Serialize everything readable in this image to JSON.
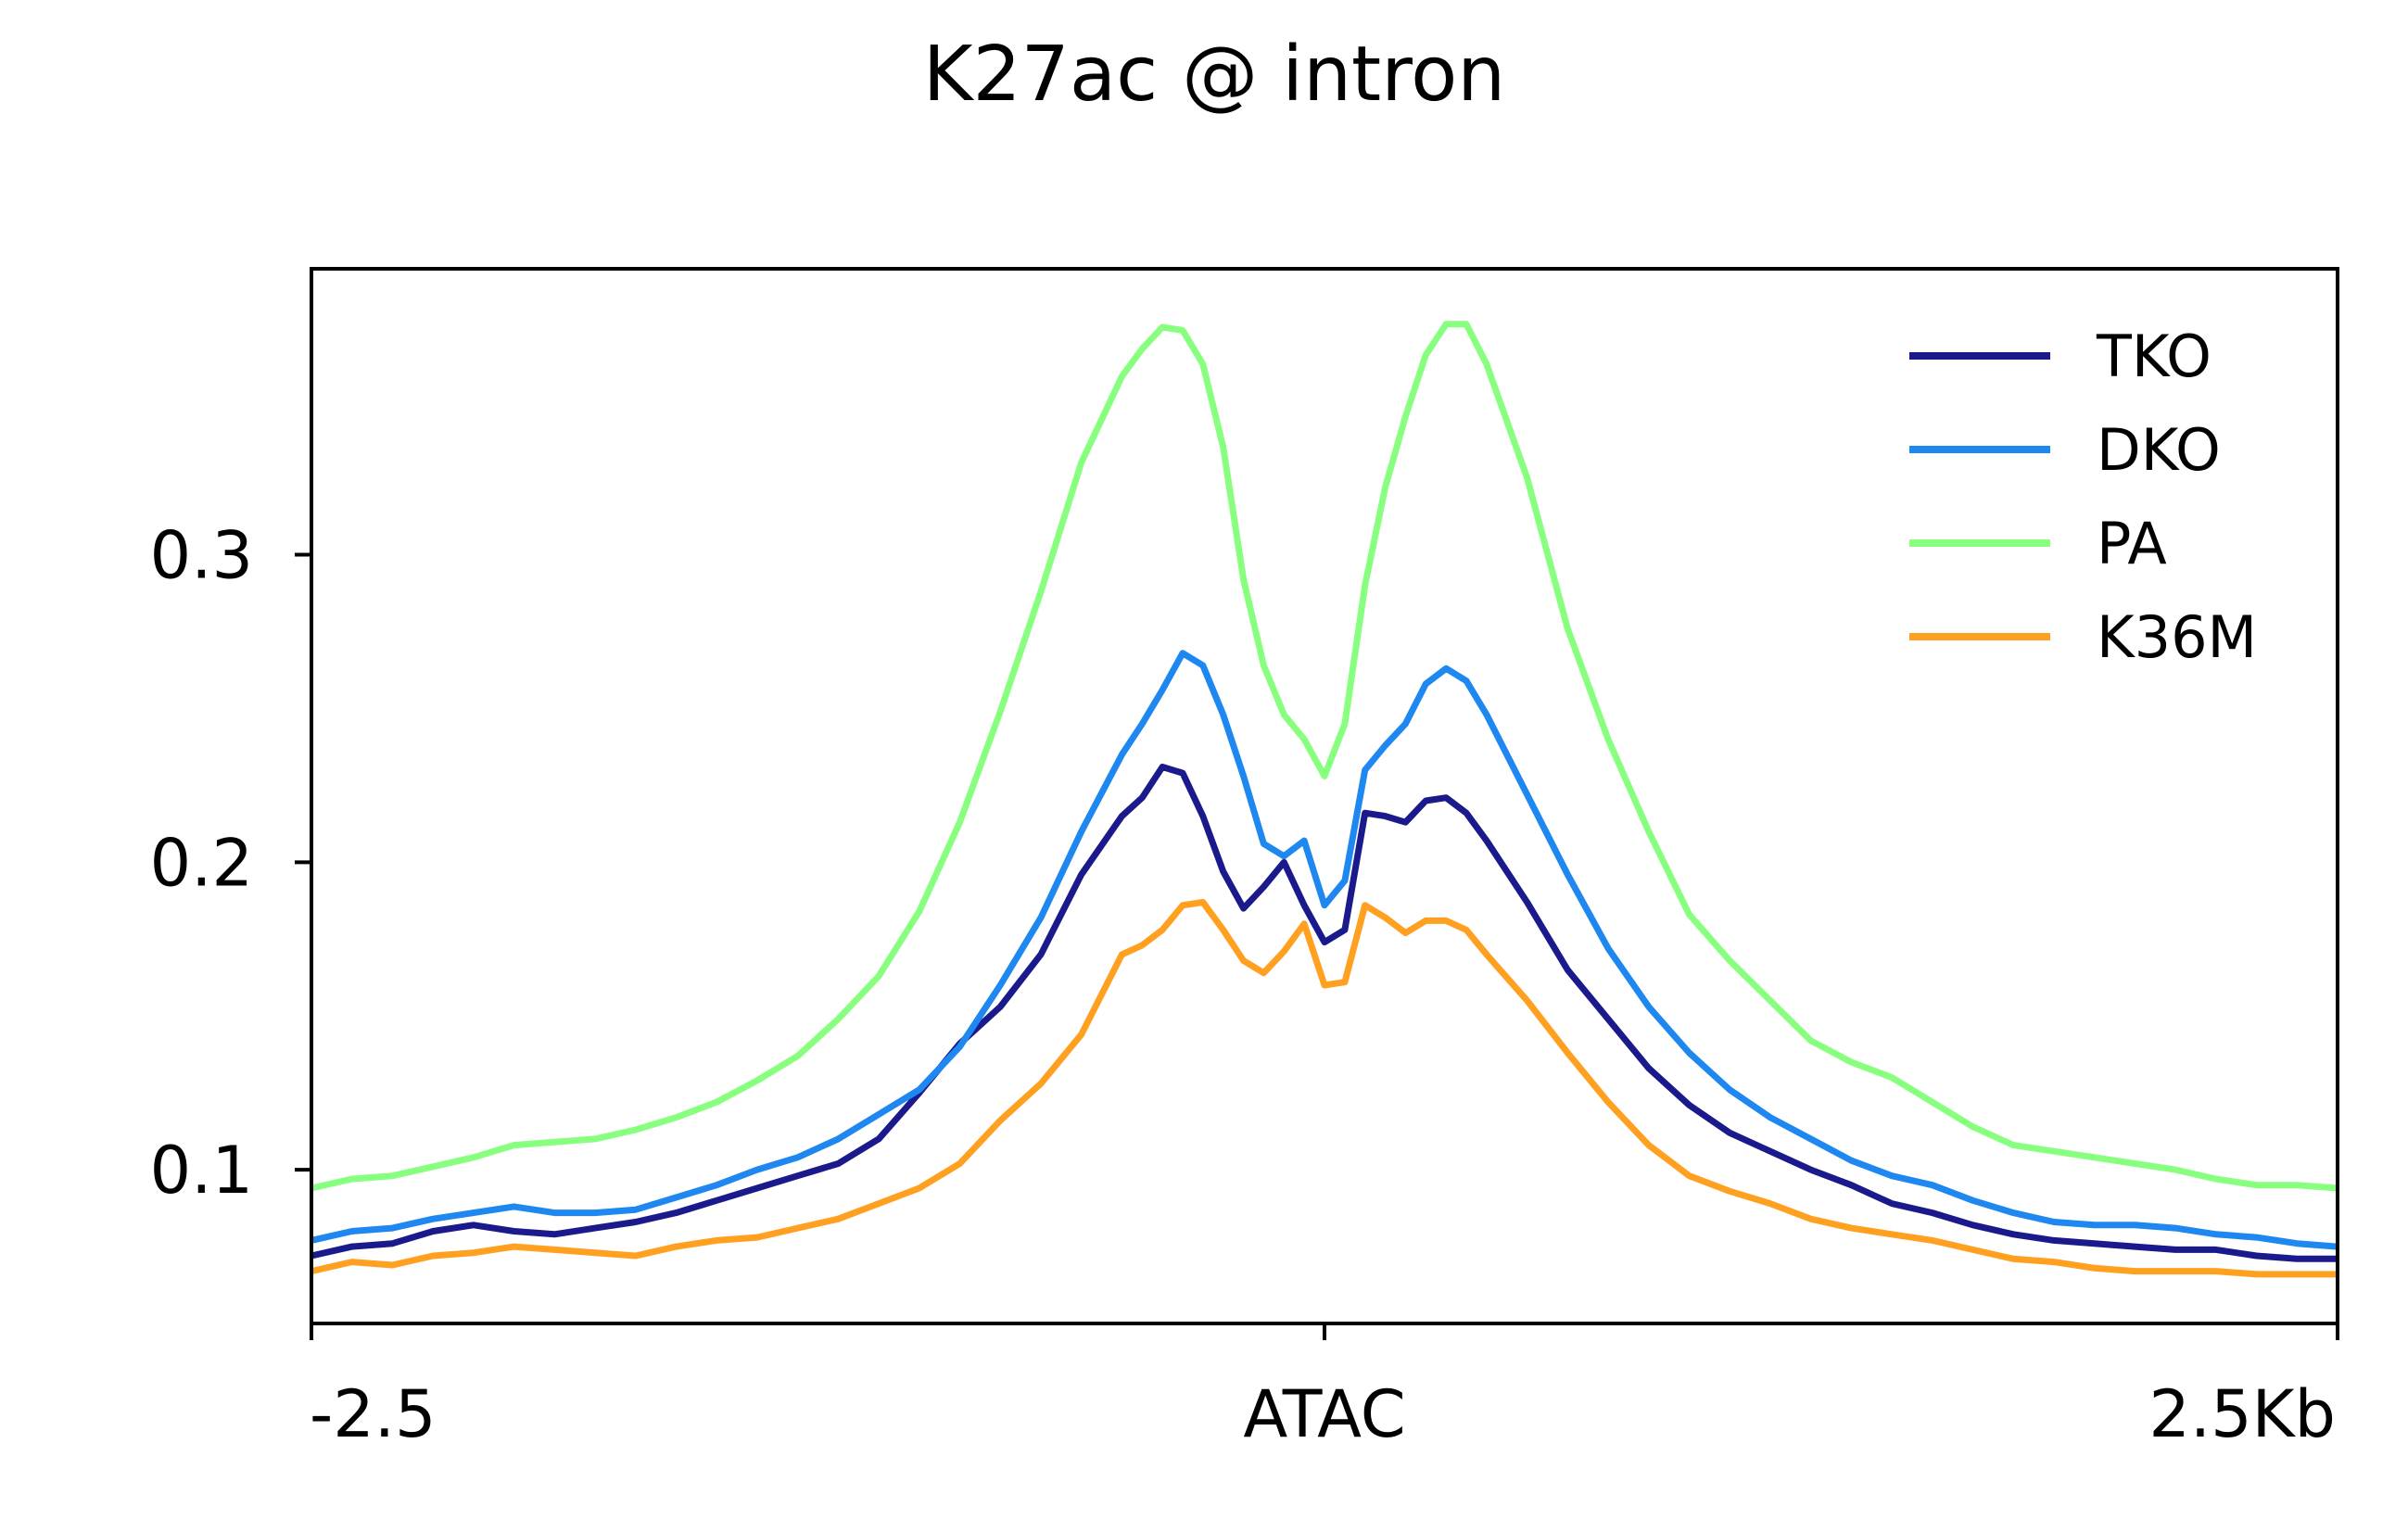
{
  "chart_data": {
    "type": "line",
    "title": "K27ac @ intron",
    "xlabel": "",
    "ylabel": "",
    "xlim": [
      -2.5,
      2.5
    ],
    "ylim": [
      0.05,
      0.393
    ],
    "x_ticks": [
      {
        "value": -2.5,
        "label": "-2.5"
      },
      {
        "value": 0,
        "label": "ATAC"
      },
      {
        "value": 2.5,
        "label": "2.5Kb"
      }
    ],
    "y_ticks": [
      {
        "value": 0.1,
        "label": "0.1"
      },
      {
        "value": 0.2,
        "label": "0.2"
      },
      {
        "value": 0.3,
        "label": "0.3"
      }
    ],
    "legend_position": "top-right",
    "grid": false,
    "series": [
      {
        "name": "TKO",
        "color": "#1a1a8c",
        "points": [
          [
            -2.5,
            0.072
          ],
          [
            -2.4,
            0.075
          ],
          [
            -2.3,
            0.076
          ],
          [
            -2.2,
            0.08
          ],
          [
            -2.1,
            0.082
          ],
          [
            -2.0,
            0.08
          ],
          [
            -1.9,
            0.079
          ],
          [
            -1.8,
            0.081
          ],
          [
            -1.7,
            0.083
          ],
          [
            -1.6,
            0.086
          ],
          [
            -1.5,
            0.09
          ],
          [
            -1.4,
            0.094
          ],
          [
            -1.3,
            0.098
          ],
          [
            -1.2,
            0.102
          ],
          [
            -1.1,
            0.11
          ],
          [
            -1.0,
            0.125
          ],
          [
            -0.9,
            0.141
          ],
          [
            -0.8,
            0.153
          ],
          [
            -0.7,
            0.17
          ],
          [
            -0.6,
            0.196
          ],
          [
            -0.5,
            0.215
          ],
          [
            -0.45,
            0.221
          ],
          [
            -0.4,
            0.231
          ],
          [
            -0.35,
            0.229
          ],
          [
            -0.3,
            0.215
          ],
          [
            -0.25,
            0.197
          ],
          [
            -0.2,
            0.185
          ],
          [
            -0.15,
            0.192
          ],
          [
            -0.1,
            0.2
          ],
          [
            -0.05,
            0.186
          ],
          [
            0.0,
            0.174
          ],
          [
            0.05,
            0.178
          ],
          [
            0.1,
            0.216
          ],
          [
            0.15,
            0.215
          ],
          [
            0.2,
            0.213
          ],
          [
            0.25,
            0.22
          ],
          [
            0.3,
            0.221
          ],
          [
            0.35,
            0.216
          ],
          [
            0.4,
            0.207
          ],
          [
            0.5,
            0.187
          ],
          [
            0.6,
            0.165
          ],
          [
            0.7,
            0.149
          ],
          [
            0.8,
            0.133
          ],
          [
            0.9,
            0.121
          ],
          [
            1.0,
            0.112
          ],
          [
            1.1,
            0.106
          ],
          [
            1.2,
            0.1
          ],
          [
            1.3,
            0.095
          ],
          [
            1.4,
            0.089
          ],
          [
            1.5,
            0.086
          ],
          [
            1.6,
            0.082
          ],
          [
            1.7,
            0.079
          ],
          [
            1.8,
            0.077
          ],
          [
            1.9,
            0.076
          ],
          [
            2.0,
            0.075
          ],
          [
            2.1,
            0.074
          ],
          [
            2.2,
            0.074
          ],
          [
            2.3,
            0.072
          ],
          [
            2.4,
            0.071
          ],
          [
            2.5,
            0.071
          ]
        ]
      },
      {
        "name": "DKO",
        "color": "#1e88f0",
        "points": [
          [
            -2.5,
            0.077
          ],
          [
            -2.4,
            0.08
          ],
          [
            -2.3,
            0.081
          ],
          [
            -2.2,
            0.084
          ],
          [
            -2.1,
            0.086
          ],
          [
            -2.0,
            0.088
          ],
          [
            -1.9,
            0.086
          ],
          [
            -1.8,
            0.086
          ],
          [
            -1.7,
            0.087
          ],
          [
            -1.6,
            0.091
          ],
          [
            -1.5,
            0.095
          ],
          [
            -1.4,
            0.1
          ],
          [
            -1.3,
            0.104
          ],
          [
            -1.2,
            0.11
          ],
          [
            -1.1,
            0.118
          ],
          [
            -1.0,
            0.126
          ],
          [
            -0.9,
            0.14
          ],
          [
            -0.8,
            0.16
          ],
          [
            -0.7,
            0.182
          ],
          [
            -0.6,
            0.21
          ],
          [
            -0.5,
            0.235
          ],
          [
            -0.45,
            0.245
          ],
          [
            -0.4,
            0.256
          ],
          [
            -0.35,
            0.268
          ],
          [
            -0.3,
            0.264
          ],
          [
            -0.25,
            0.248
          ],
          [
            -0.2,
            0.228
          ],
          [
            -0.15,
            0.206
          ],
          [
            -0.1,
            0.202
          ],
          [
            -0.05,
            0.207
          ],
          [
            0.0,
            0.186
          ],
          [
            0.05,
            0.194
          ],
          [
            0.1,
            0.23
          ],
          [
            0.15,
            0.238
          ],
          [
            0.2,
            0.245
          ],
          [
            0.25,
            0.258
          ],
          [
            0.3,
            0.263
          ],
          [
            0.35,
            0.259
          ],
          [
            0.4,
            0.248
          ],
          [
            0.5,
            0.222
          ],
          [
            0.6,
            0.196
          ],
          [
            0.7,
            0.172
          ],
          [
            0.8,
            0.153
          ],
          [
            0.9,
            0.138
          ],
          [
            1.0,
            0.126
          ],
          [
            1.1,
            0.117
          ],
          [
            1.2,
            0.11
          ],
          [
            1.3,
            0.103
          ],
          [
            1.4,
            0.098
          ],
          [
            1.5,
            0.095
          ],
          [
            1.6,
            0.09
          ],
          [
            1.7,
            0.086
          ],
          [
            1.8,
            0.083
          ],
          [
            1.9,
            0.082
          ],
          [
            2.0,
            0.082
          ],
          [
            2.1,
            0.081
          ],
          [
            2.2,
            0.079
          ],
          [
            2.3,
            0.078
          ],
          [
            2.4,
            0.076
          ],
          [
            2.5,
            0.075
          ]
        ]
      },
      {
        "name": "PA",
        "color": "#88ff7f",
        "points": [
          [
            -2.5,
            0.094
          ],
          [
            -2.4,
            0.097
          ],
          [
            -2.3,
            0.098
          ],
          [
            -2.2,
            0.101
          ],
          [
            -2.1,
            0.104
          ],
          [
            -2.0,
            0.108
          ],
          [
            -1.9,
            0.109
          ],
          [
            -1.8,
            0.11
          ],
          [
            -1.7,
            0.113
          ],
          [
            -1.6,
            0.117
          ],
          [
            -1.5,
            0.122
          ],
          [
            -1.4,
            0.129
          ],
          [
            -1.3,
            0.137
          ],
          [
            -1.2,
            0.149
          ],
          [
            -1.1,
            0.163
          ],
          [
            -1.0,
            0.184
          ],
          [
            -0.9,
            0.213
          ],
          [
            -0.8,
            0.249
          ],
          [
            -0.7,
            0.288
          ],
          [
            -0.6,
            0.33
          ],
          [
            -0.5,
            0.358
          ],
          [
            -0.45,
            0.367
          ],
          [
            -0.4,
            0.374
          ],
          [
            -0.35,
            0.373
          ],
          [
            -0.3,
            0.362
          ],
          [
            -0.25,
            0.335
          ],
          [
            -0.2,
            0.292
          ],
          [
            -0.15,
            0.264
          ],
          [
            -0.1,
            0.248
          ],
          [
            -0.05,
            0.24
          ],
          [
            0.0,
            0.228
          ],
          [
            0.05,
            0.245
          ],
          [
            0.1,
            0.29
          ],
          [
            0.15,
            0.322
          ],
          [
            0.2,
            0.345
          ],
          [
            0.25,
            0.365
          ],
          [
            0.3,
            0.375
          ],
          [
            0.35,
            0.375
          ],
          [
            0.4,
            0.362
          ],
          [
            0.5,
            0.325
          ],
          [
            0.6,
            0.276
          ],
          [
            0.7,
            0.24
          ],
          [
            0.8,
            0.21
          ],
          [
            0.9,
            0.183
          ],
          [
            1.0,
            0.168
          ],
          [
            1.1,
            0.155
          ],
          [
            1.2,
            0.142
          ],
          [
            1.3,
            0.135
          ],
          [
            1.4,
            0.13
          ],
          [
            1.5,
            0.122
          ],
          [
            1.6,
            0.114
          ],
          [
            1.7,
            0.108
          ],
          [
            1.8,
            0.106
          ],
          [
            1.9,
            0.104
          ],
          [
            2.0,
            0.102
          ],
          [
            2.1,
            0.1
          ],
          [
            2.2,
            0.097
          ],
          [
            2.3,
            0.095
          ],
          [
            2.4,
            0.095
          ],
          [
            2.5,
            0.094
          ]
        ]
      },
      {
        "name": "K36M",
        "color": "#ffa020",
        "points": [
          [
            -2.5,
            0.067
          ],
          [
            -2.4,
            0.07
          ],
          [
            -2.3,
            0.069
          ],
          [
            -2.2,
            0.072
          ],
          [
            -2.1,
            0.073
          ],
          [
            -2.0,
            0.075
          ],
          [
            -1.9,
            0.074
          ],
          [
            -1.8,
            0.073
          ],
          [
            -1.7,
            0.072
          ],
          [
            -1.6,
            0.075
          ],
          [
            -1.5,
            0.077
          ],
          [
            -1.4,
            0.078
          ],
          [
            -1.3,
            0.081
          ],
          [
            -1.2,
            0.084
          ],
          [
            -1.1,
            0.089
          ],
          [
            -1.0,
            0.094
          ],
          [
            -0.9,
            0.102
          ],
          [
            -0.8,
            0.116
          ],
          [
            -0.7,
            0.128
          ],
          [
            -0.6,
            0.144
          ],
          [
            -0.5,
            0.17
          ],
          [
            -0.45,
            0.173
          ],
          [
            -0.4,
            0.178
          ],
          [
            -0.35,
            0.186
          ],
          [
            -0.3,
            0.187
          ],
          [
            -0.25,
            0.178
          ],
          [
            -0.2,
            0.168
          ],
          [
            -0.15,
            0.164
          ],
          [
            -0.1,
            0.171
          ],
          [
            -0.05,
            0.18
          ],
          [
            0.0,
            0.16
          ],
          [
            0.05,
            0.161
          ],
          [
            0.1,
            0.186
          ],
          [
            0.15,
            0.182
          ],
          [
            0.2,
            0.177
          ],
          [
            0.25,
            0.181
          ],
          [
            0.3,
            0.181
          ],
          [
            0.35,
            0.178
          ],
          [
            0.4,
            0.17
          ],
          [
            0.5,
            0.155
          ],
          [
            0.6,
            0.138
          ],
          [
            0.7,
            0.122
          ],
          [
            0.8,
            0.108
          ],
          [
            0.9,
            0.098
          ],
          [
            1.0,
            0.093
          ],
          [
            1.1,
            0.089
          ],
          [
            1.2,
            0.084
          ],
          [
            1.3,
            0.081
          ],
          [
            1.4,
            0.079
          ],
          [
            1.5,
            0.077
          ],
          [
            1.6,
            0.074
          ],
          [
            1.7,
            0.071
          ],
          [
            1.8,
            0.07
          ],
          [
            1.9,
            0.068
          ],
          [
            2.0,
            0.067
          ],
          [
            2.1,
            0.067
          ],
          [
            2.2,
            0.067
          ],
          [
            2.3,
            0.066
          ],
          [
            2.4,
            0.066
          ],
          [
            2.5,
            0.066
          ]
        ]
      }
    ]
  }
}
